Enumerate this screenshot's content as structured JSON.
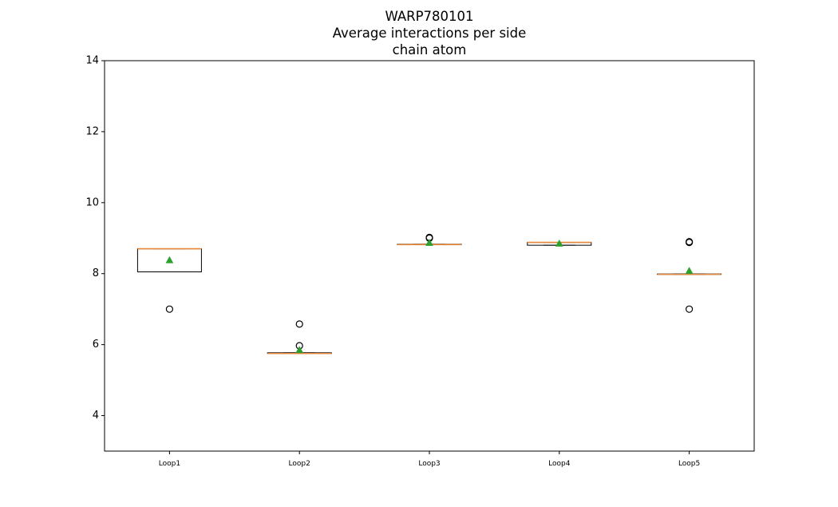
{
  "chart_data": {
    "type": "box",
    "title_lines": [
      "WARP780101",
      "Average interactions per side",
      "chain atom"
    ],
    "xlabel": "",
    "ylabel": "",
    "ylim": [
      3,
      14
    ],
    "yticks": [
      4,
      6,
      8,
      10,
      12,
      14
    ],
    "categories": [
      "Loop1",
      "Loop2",
      "Loop3",
      "Loop4",
      "Loop5"
    ],
    "boxes": [
      {
        "category": "Loop1",
        "whisker_low": 8.05,
        "q1": 8.05,
        "median": 8.7,
        "q3": 8.7,
        "whisker_high": 8.7,
        "mean": 8.38,
        "outliers": [
          7.0
        ]
      },
      {
        "category": "Loop2",
        "whisker_low": 5.75,
        "q1": 5.75,
        "median": 5.75,
        "q3": 5.77,
        "whisker_high": 5.77,
        "mean": 5.85,
        "outliers": [
          5.97,
          6.58
        ]
      },
      {
        "category": "Loop3",
        "whisker_low": 8.82,
        "q1": 8.82,
        "median": 8.82,
        "q3": 8.83,
        "whisker_high": 8.83,
        "mean": 8.87,
        "outliers": [
          9.0,
          9.02
        ]
      },
      {
        "category": "Loop4",
        "whisker_low": 8.8,
        "q1": 8.8,
        "median": 8.88,
        "q3": 8.88,
        "whisker_high": 8.88,
        "mean": 8.85,
        "outliers": []
      },
      {
        "category": "Loop5",
        "whisker_low": 7.98,
        "q1": 7.98,
        "median": 7.98,
        "q3": 7.99,
        "whisker_high": 7.99,
        "mean": 8.08,
        "outliers": [
          7.0,
          8.88,
          8.9
        ]
      }
    ],
    "colors": {
      "box": "#000000",
      "median": "#e8883b",
      "mean": "#2ca02c",
      "outlier_edge": "#000000"
    },
    "grid": false,
    "legend": "none"
  }
}
